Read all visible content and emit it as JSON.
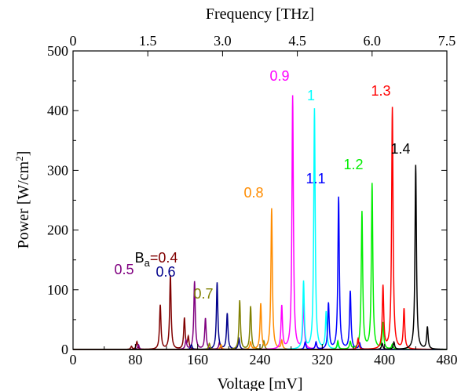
{
  "chart_data": {
    "type": "line",
    "xlabel": "Voltage [mV]",
    "ylabel_main": "Power [W/cm",
    "ylabel_sup": "2",
    "ylabel_close": "]",
    "top_xlabel": "Frequency [THz]",
    "xlim": [
      0,
      480
    ],
    "ylim": [
      0,
      500
    ],
    "top_xlim": [
      0,
      7.5
    ],
    "x_ticks": [
      0,
      80,
      160,
      240,
      320,
      400,
      480
    ],
    "y_ticks": [
      0,
      100,
      200,
      300,
      400,
      500
    ],
    "top_ticks": [
      "0",
      "1.5",
      "3.0",
      "4.5",
      "6.0",
      "7.5"
    ],
    "grid": false,
    "legend_prefix": "B",
    "legend_sub": "a",
    "series": [
      {
        "name": "=0.4",
        "color": "#800000",
        "peaks": [
          [
            75,
            5
          ],
          [
            82,
            13
          ],
          [
            112,
            74
          ],
          [
            125,
            124
          ],
          [
            143,
            52
          ],
          [
            148,
            20
          ]
        ]
      },
      {
        "name": "0.5",
        "color": "#800080",
        "peaks": [
          [
            84,
            8
          ],
          [
            145,
            15
          ],
          [
            156,
            114
          ],
          [
            170,
            52
          ],
          [
            188,
            12
          ]
        ]
      },
      {
        "name": "0.6",
        "color": "#00008B",
        "peaks": [
          [
            152,
            8
          ],
          [
            185,
            112
          ],
          [
            198,
            60
          ],
          [
            213,
            18
          ]
        ]
      },
      {
        "name": "0.7",
        "color": "#808000",
        "peaks": [
          [
            175,
            10
          ],
          [
            214,
            82
          ],
          [
            228,
            72
          ],
          [
            245,
            14
          ]
        ]
      },
      {
        "name": "0.8",
        "color": "#FF8C00",
        "peaks": [
          [
            190,
            8
          ],
          [
            228,
            12
          ],
          [
            241,
            76
          ],
          [
            255,
            236
          ],
          [
            268,
            14
          ]
        ]
      },
      {
        "name": "0.9",
        "color": "#FF00FF",
        "peaks": [
          [
            268,
            72
          ],
          [
            282,
            425
          ],
          [
            296,
            75
          ],
          [
            312,
            10
          ]
        ]
      },
      {
        "name": "1",
        "color": "#00FFFF",
        "peaks": [
          [
            296,
            113
          ],
          [
            310,
            403
          ],
          [
            325,
            62
          ],
          [
            340,
            8
          ]
        ]
      },
      {
        "name": "1.1",
        "color": "#0000FF",
        "peaks": [
          [
            298,
            12
          ],
          [
            312,
            12
          ],
          [
            328,
            77
          ],
          [
            341,
            255
          ],
          [
            356,
            97
          ],
          [
            368,
            10
          ]
        ]
      },
      {
        "name": "1.2",
        "color": "#00EE00",
        "peaks": [
          [
            340,
            14
          ],
          [
            356,
            12
          ],
          [
            371,
            230
          ],
          [
            384,
            277
          ],
          [
            398,
            44
          ],
          [
            410,
            8
          ]
        ]
      },
      {
        "name": "1.3",
        "color": "#FF0000",
        "peaks": [
          [
            366,
            18
          ],
          [
            398,
            105
          ],
          [
            410,
            405
          ],
          [
            425,
            67
          ]
        ]
      },
      {
        "name": "1.4",
        "color": "#000000",
        "peaks": [
          [
            397,
            10
          ],
          [
            412,
            12
          ],
          [
            440,
            309
          ],
          [
            455,
            37
          ]
        ]
      }
    ]
  }
}
